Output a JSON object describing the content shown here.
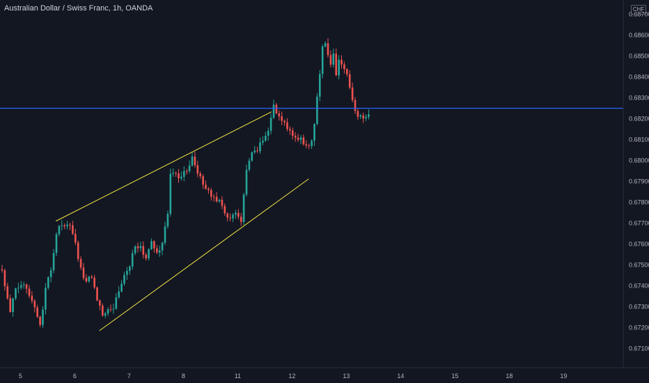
{
  "header": {
    "title": "Australian Dollar / Swiss Franc, 1h, OANDA",
    "currency": "CHF"
  },
  "colors": {
    "background": "#131722",
    "up": "#26a69a",
    "down": "#ef5350",
    "horizontal_line": "#2962ff",
    "trendline": "#f5e642",
    "axis_text": "#b2b5be"
  },
  "chart_data": {
    "type": "candlestick",
    "title": "Australian Dollar / Swiss Franc, 1h, OANDA",
    "xlabel": "",
    "ylabel": "CHF",
    "ylim": [
      0.6704,
      0.6876
    ],
    "y_ticks": [
      "0.68700",
      "0.68600",
      "0.68500",
      "0.68400",
      "0.68300",
      "0.68200",
      "0.68100",
      "0.68000",
      "0.67900",
      "0.67800",
      "0.67700",
      "0.67600",
      "0.67500",
      "0.67400",
      "0.67300",
      "0.67200",
      "0.67100"
    ],
    "x_ticks": [
      {
        "label": "5",
        "bar": 6
      },
      {
        "label": "6",
        "bar": 26
      },
      {
        "label": "7",
        "bar": 46
      },
      {
        "label": "8",
        "bar": 66
      },
      {
        "label": "11",
        "bar": 86
      },
      {
        "label": "12",
        "bar": 106
      },
      {
        "label": "13",
        "bar": 126
      },
      {
        "label": "14",
        "bar": 146
      },
      {
        "label": "15",
        "bar": 166
      },
      {
        "label": "18",
        "bar": 186
      },
      {
        "label": "19",
        "bar": 206
      }
    ],
    "bars_total": 236,
    "grid": false,
    "horizontal_lines": [
      {
        "value": 0.6825
      }
    ],
    "trendlines": [
      {
        "from": {
          "bar": 19.8,
          "value": 0.6771
        },
        "to": {
          "bar": 99.2,
          "value": 0.68233
        }
      },
      {
        "from": {
          "bar": 35.8,
          "value": 0.67185
        },
        "to": {
          "bar": 112.9,
          "value": 0.67912
        }
      }
    ],
    "series": [
      {
        "keypoints": [
          [
            0,
            0.6747
          ],
          [
            3,
            0.6728
          ],
          [
            5,
            0.6738
          ],
          [
            9,
            0.674
          ],
          [
            12,
            0.673
          ],
          [
            14,
            0.672
          ],
          [
            16,
            0.6738
          ],
          [
            18,
            0.6748
          ],
          [
            20,
            0.6765
          ],
          [
            22,
            0.677
          ],
          [
            25,
            0.6768
          ],
          [
            27,
            0.676
          ],
          [
            29,
            0.6748
          ],
          [
            31,
            0.6742
          ],
          [
            33,
            0.6745
          ],
          [
            35,
            0.6734
          ],
          [
            37,
            0.6726
          ],
          [
            39,
            0.673
          ],
          [
            41,
            0.673
          ],
          [
            43,
            0.6738
          ],
          [
            45,
            0.6745
          ],
          [
            47,
            0.675
          ],
          [
            49,
            0.676
          ],
          [
            51,
            0.6758
          ],
          [
            53,
            0.6752
          ],
          [
            55,
            0.6762
          ],
          [
            57,
            0.6755
          ],
          [
            59,
            0.676
          ],
          [
            61,
            0.6775
          ],
          [
            62,
            0.6795
          ],
          [
            65,
            0.6792
          ],
          [
            68,
            0.6795
          ],
          [
            70,
            0.6802
          ],
          [
            72,
            0.6795
          ],
          [
            74,
            0.6788
          ],
          [
            76,
            0.6785
          ],
          [
            78,
            0.6783
          ],
          [
            80,
            0.678
          ],
          [
            82,
            0.6774
          ],
          [
            84,
            0.6773
          ],
          [
            86,
            0.6775
          ],
          [
            88,
            0.677
          ],
          [
            90,
            0.6795
          ],
          [
            92,
            0.6803
          ],
          [
            94,
            0.6805
          ],
          [
            96,
            0.681
          ],
          [
            98,
            0.6815
          ],
          [
            100,
            0.6826
          ],
          [
            102,
            0.682
          ],
          [
            104,
            0.6818
          ],
          [
            106,
            0.6814
          ],
          [
            108,
            0.6812
          ],
          [
            110,
            0.681
          ],
          [
            112,
            0.6806
          ],
          [
            114,
            0.681
          ],
          [
            115,
            0.6818
          ],
          [
            116,
            0.683
          ],
          [
            117,
            0.684
          ],
          [
            118,
            0.6855
          ],
          [
            119,
            0.6857
          ],
          [
            120,
            0.685
          ],
          [
            121,
            0.6846
          ],
          [
            122,
            0.6852
          ],
          [
            123,
            0.684
          ],
          [
            124,
            0.6848
          ],
          [
            125,
            0.6845
          ],
          [
            126,
            0.6845
          ],
          [
            127,
            0.684
          ],
          [
            128,
            0.6836
          ],
          [
            129,
            0.6828
          ],
          [
            130,
            0.6824
          ],
          [
            131,
            0.6822
          ],
          [
            132,
            0.6821
          ],
          [
            133,
            0.682
          ],
          [
            134,
            0.6822
          ],
          [
            135,
            0.6821
          ]
        ]
      }
    ]
  }
}
